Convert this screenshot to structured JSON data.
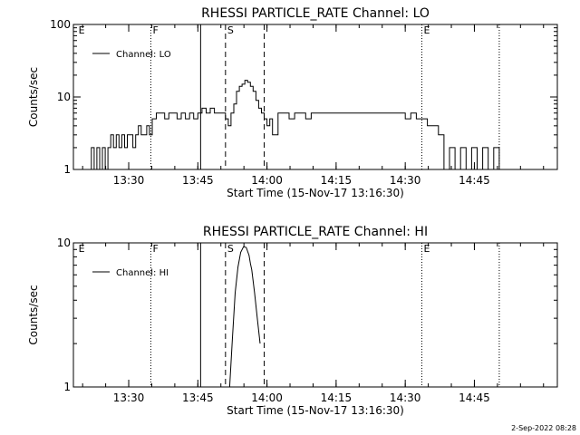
{
  "timestamp": "2-Sep-2022 08:28",
  "chart_data": [
    {
      "type": "line",
      "title": "RHESSI PARTICLE_RATE Channel: LO",
      "xlabel": "Start Time (15-Nov-17 13:16:30)",
      "ylabel": "Counts/sec",
      "yscale": "log",
      "ylim": [
        1,
        100
      ],
      "yticks": [
        {
          "v": 1,
          "label": "1"
        },
        {
          "v": 10,
          "label": "10"
        },
        {
          "v": 100,
          "label": "100"
        }
      ],
      "xlim": [
        13.3,
        15.05
      ],
      "xticks": [
        {
          "v": 13.5,
          "label": "13:30"
        },
        {
          "v": 13.75,
          "label": "13:45"
        },
        {
          "v": 14.0,
          "label": "14:00"
        },
        {
          "v": 14.25,
          "label": "14:15"
        },
        {
          "v": 14.5,
          "label": "14:30"
        },
        {
          "v": 14.75,
          "label": "14:45"
        }
      ],
      "markers": [
        {
          "x": 13.312,
          "style": "none",
          "label": "E"
        },
        {
          "x": 13.58,
          "style": "dotted",
          "label": "F"
        },
        {
          "x": 13.76,
          "style": "solid",
          "label": ""
        },
        {
          "x": 13.85,
          "style": "dashed",
          "label": "S"
        },
        {
          "x": 13.99,
          "style": "dashed",
          "label": ""
        },
        {
          "x": 14.56,
          "style": "dotted",
          "label": "E"
        },
        {
          "x": 14.84,
          "style": "dotted",
          "label": ""
        }
      ],
      "legend": {
        "position": "top-left"
      },
      "series": [
        {
          "name": "Channel: LO",
          "x": [
            13.355,
            13.365,
            13.375,
            13.385,
            13.395,
            13.405,
            13.415,
            13.425,
            13.435,
            13.445,
            13.455,
            13.465,
            13.475,
            13.485,
            13.495,
            13.505,
            13.515,
            13.525,
            13.535,
            13.545,
            13.555,
            13.565,
            13.575,
            13.585,
            13.6,
            13.615,
            13.63,
            13.645,
            13.66,
            13.675,
            13.69,
            13.705,
            13.72,
            13.735,
            13.75,
            13.765,
            13.78,
            13.795,
            13.81,
            13.825,
            13.84,
            13.85,
            13.86,
            13.87,
            13.88,
            13.89,
            13.9,
            13.91,
            13.92,
            13.93,
            13.94,
            13.95,
            13.96,
            13.97,
            13.98,
            13.99,
            14.0,
            14.01,
            14.02,
            14.04,
            14.06,
            14.08,
            14.1,
            14.12,
            14.14,
            14.16,
            14.18,
            14.2,
            14.22,
            14.24,
            14.26,
            14.28,
            14.3,
            14.32,
            14.34,
            14.36,
            14.38,
            14.4,
            14.42,
            14.44,
            14.46,
            14.48,
            14.5,
            14.52,
            14.54,
            14.56,
            14.58,
            14.6,
            14.62,
            14.64,
            14.66,
            14.68,
            14.7,
            14.72,
            14.74,
            14.76,
            14.78,
            14.8,
            14.82,
            14.84
          ],
          "values": [
            1,
            2,
            1,
            2,
            1,
            2,
            1,
            2,
            3,
            2,
            3,
            2,
            3,
            2,
            3,
            3,
            2,
            3,
            4,
            3,
            3,
            4,
            3,
            5,
            6,
            6,
            5,
            6,
            6,
            5,
            6,
            5,
            6,
            5,
            6,
            7,
            6,
            7,
            6,
            6,
            6,
            5,
            4,
            6,
            8,
            12,
            14,
            15,
            17,
            16,
            14,
            12,
            9,
            7,
            6,
            5,
            4,
            5,
            3,
            6,
            6,
            5,
            6,
            6,
            5,
            6,
            6,
            6,
            6,
            6,
            6,
            6,
            6,
            6,
            6,
            6,
            6,
            6,
            6,
            6,
            6,
            6,
            5,
            6,
            5,
            5,
            4,
            4,
            3,
            1,
            2,
            1,
            2,
            1,
            2,
            1,
            2,
            1,
            2,
            1
          ]
        }
      ]
    },
    {
      "type": "line",
      "title": "RHESSI PARTICLE_RATE Channel: HI",
      "xlabel": "Start Time (15-Nov-17 13:16:30)",
      "ylabel": "Counts/sec",
      "yscale": "log",
      "ylim": [
        1,
        10
      ],
      "yticks": [
        {
          "v": 1,
          "label": "1"
        },
        {
          "v": 10,
          "label": "10"
        }
      ],
      "xlim": [
        13.3,
        15.05
      ],
      "xticks": [
        {
          "v": 13.5,
          "label": "13:30"
        },
        {
          "v": 13.75,
          "label": "13:45"
        },
        {
          "v": 14.0,
          "label": "14:00"
        },
        {
          "v": 14.25,
          "label": "14:15"
        },
        {
          "v": 14.5,
          "label": "14:30"
        },
        {
          "v": 14.75,
          "label": "14:45"
        }
      ],
      "markers": [
        {
          "x": 13.312,
          "style": "none",
          "label": "E"
        },
        {
          "x": 13.58,
          "style": "dotted",
          "label": "F"
        },
        {
          "x": 13.76,
          "style": "solid",
          "label": ""
        },
        {
          "x": 13.85,
          "style": "dashed",
          "label": "S"
        },
        {
          "x": 13.99,
          "style": "dashed",
          "label": ""
        },
        {
          "x": 14.56,
          "style": "dotted",
          "label": "E"
        },
        {
          "x": 14.84,
          "style": "dotted",
          "label": ""
        }
      ],
      "legend": {
        "position": "top-left"
      },
      "series": [
        {
          "name": "Channel: HI",
          "x": [
            13.865,
            13.875,
            13.885,
            13.895,
            13.905,
            13.915,
            13.925,
            13.935,
            13.94,
            13.945,
            13.955,
            13.965,
            13.975
          ],
          "values": [
            1,
            2.2,
            4.5,
            6.8,
            8.6,
            9.4,
            9.3,
            8.2,
            7.2,
            6.5,
            4.5,
            3.0,
            2.0
          ]
        }
      ]
    }
  ]
}
